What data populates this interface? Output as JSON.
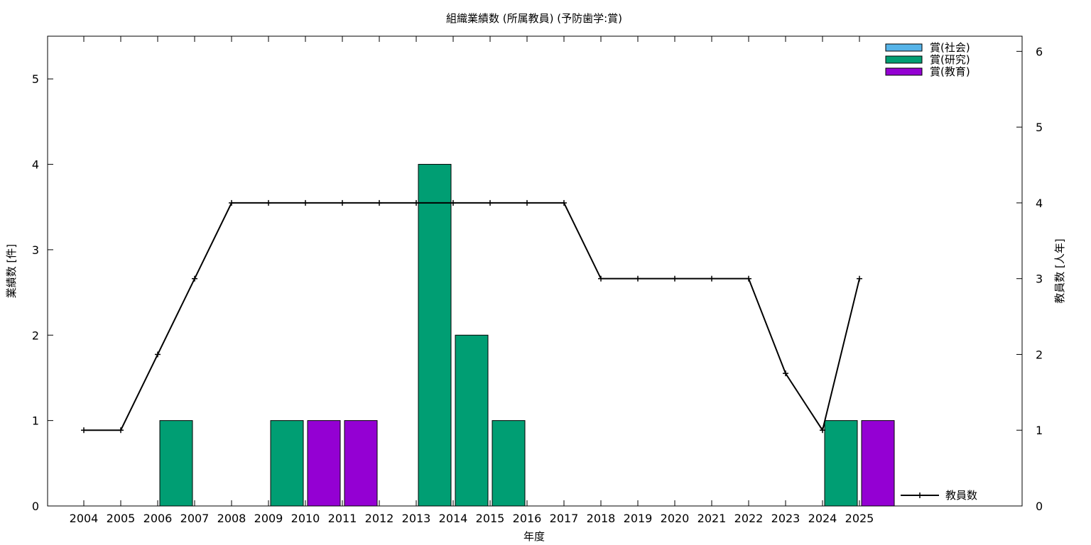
{
  "chart_data": {
    "type": "bar",
    "title": "組織業績数 (所属教員) (予防歯学:賞)",
    "xlabel": "年度",
    "ylabel": "業績数 [件]",
    "y2label": "教員数 [人年]",
    "ylim": [
      0,
      5.5
    ],
    "y2lim": [
      0,
      6.2
    ],
    "yticks": [
      "0",
      "1",
      "2",
      "3",
      "4",
      "5"
    ],
    "y2ticks": [
      "0",
      "1",
      "2",
      "3",
      "4",
      "5",
      "6"
    ],
    "grid": false,
    "legend_position": "top-right",
    "categories": [
      "2004",
      "2005",
      "2006",
      "2007",
      "2008",
      "2009",
      "2010",
      "2011",
      "2012",
      "2013",
      "2014",
      "2015",
      "2016",
      "2017",
      "2018",
      "2019",
      "2020",
      "2021",
      "2022",
      "2023",
      "2024",
      "2025"
    ],
    "series": [
      {
        "name": "賞(社会)",
        "color": "#56b4e9",
        "values": [
          0,
          0,
          0,
          0,
          0,
          0,
          0,
          0,
          0,
          0,
          0,
          0,
          0,
          0,
          0,
          0,
          0,
          0,
          0,
          0,
          0,
          0
        ]
      },
      {
        "name": "賞(研究)",
        "color": "#009e73",
        "values": [
          0,
          0,
          1,
          0,
          0,
          1,
          0,
          0,
          0,
          4,
          2,
          1,
          0,
          0,
          0,
          0,
          0,
          0,
          0,
          0,
          1,
          0
        ]
      },
      {
        "name": "賞(教育)",
        "color": "#9400d3",
        "values": [
          0,
          0,
          0,
          0,
          0,
          0,
          1,
          1,
          0,
          0,
          0,
          0,
          0,
          0,
          0,
          0,
          0,
          0,
          0,
          0,
          0,
          1
        ]
      }
    ],
    "line_series": {
      "name": "教員数",
      "color": "#000000",
      "axis": "y2",
      "values": [
        1,
        1,
        2,
        3,
        4,
        4,
        4,
        4,
        4,
        4,
        4,
        4,
        4,
        4,
        3,
        3,
        3,
        3,
        3,
        1.75,
        1,
        3
      ]
    }
  }
}
